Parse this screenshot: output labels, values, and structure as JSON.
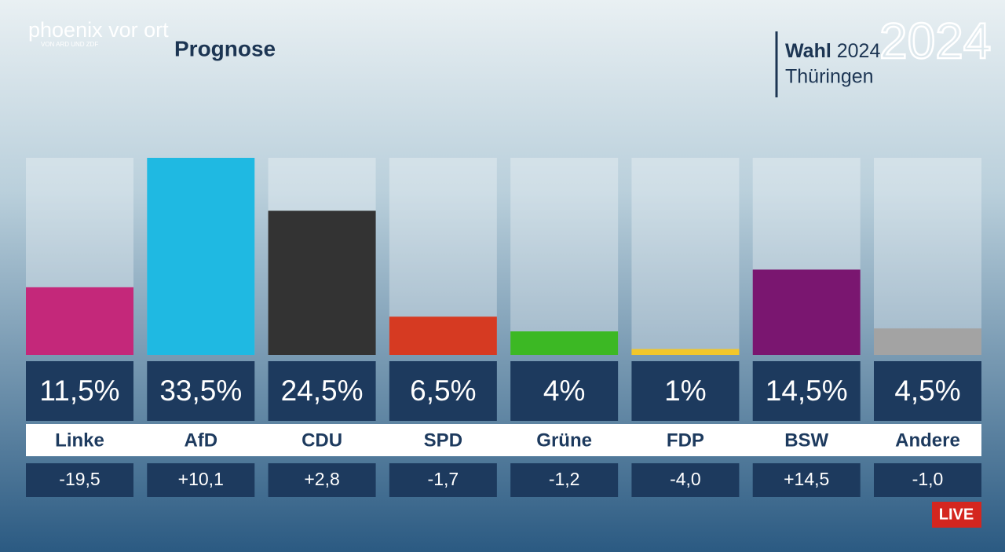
{
  "brand": {
    "name": "phoenix vor ort",
    "tagline": "VON ARD UND ZDF"
  },
  "election": {
    "label": "Wahl",
    "year": "2024",
    "region": "Thüringen",
    "logo": "2024"
  },
  "live": "LIVE",
  "chart_data": {
    "type": "bar",
    "title": "Prognose",
    "categories": [
      "Linke",
      "AfD",
      "CDU",
      "SPD",
      "Grüne",
      "FDP",
      "BSW",
      "Andere"
    ],
    "values": [
      11.5,
      33.5,
      24.5,
      6.5,
      4,
      1,
      14.5,
      4.5
    ],
    "value_labels": [
      "11,5%",
      "33,5%",
      "24,5%",
      "6,5%",
      "4%",
      "1%",
      "14,5%",
      "4,5%"
    ],
    "colors": [
      "#c4287a",
      "#1fb9e2",
      "#333333",
      "#d63a22",
      "#3cb824",
      "#f2c72a",
      "#7a1670",
      "#a3a3a3"
    ],
    "changes": [
      "-19,5",
      "+10,1",
      "+2,8",
      "-1,7",
      "-1,2",
      "-4,0",
      "+14,5",
      "-1,0"
    ]
  }
}
